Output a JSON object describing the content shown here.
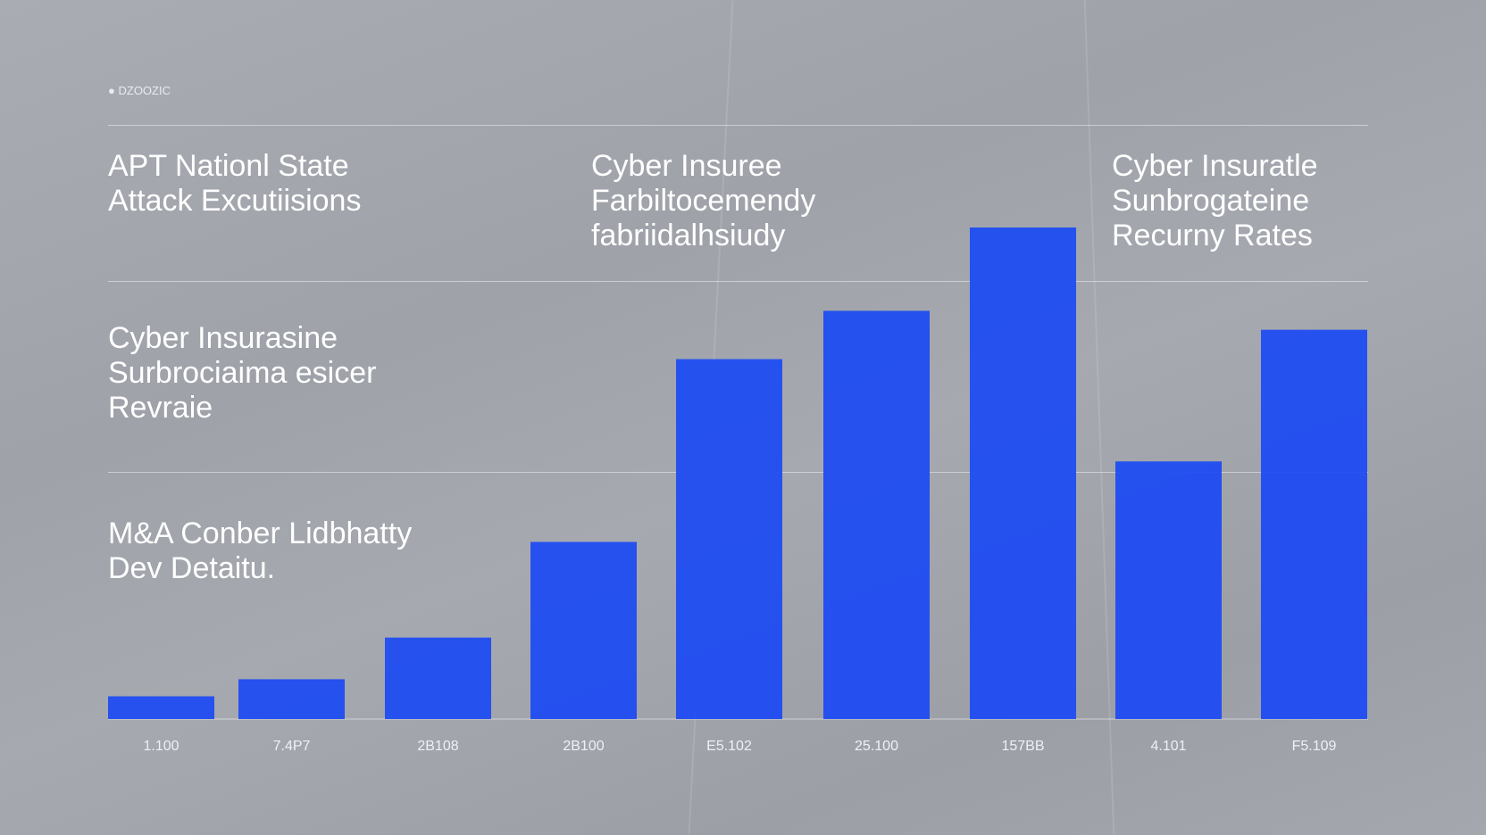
{
  "header": {
    "left_code": "DZOOZIC",
    "center_text": "",
    "right_text": ""
  },
  "panels": [
    {
      "title": "APT Nationl State\nAttack Excutiisions"
    },
    {
      "title": "Cyber Insuree\nFarbiltocemendy\nfabriidalhsiudy"
    },
    {
      "title": "Cyber Insuratle\nSunbrogateine\nRecurny Rates"
    },
    {
      "title": "Cyber Insurasine\nSurbrociaima esicer\nRevraie"
    },
    {
      "title": "M&A Conber Lidbhatty\nDev Detaitu."
    }
  ],
  "chart_data": {
    "type": "bar",
    "categories": [
      "1.100",
      "7.4P7",
      "2B108",
      "2B100",
      "E5.102",
      "25.100",
      "157BB",
      "4.101",
      "F5.109"
    ],
    "values": [
      24,
      42,
      86,
      187,
      380,
      431,
      519,
      272,
      411
    ],
    "title": "",
    "xlabel": "",
    "ylabel": "",
    "ylim": [
      0,
      519
    ],
    "grid": false,
    "bar_color": "#1f4cf2"
  }
}
